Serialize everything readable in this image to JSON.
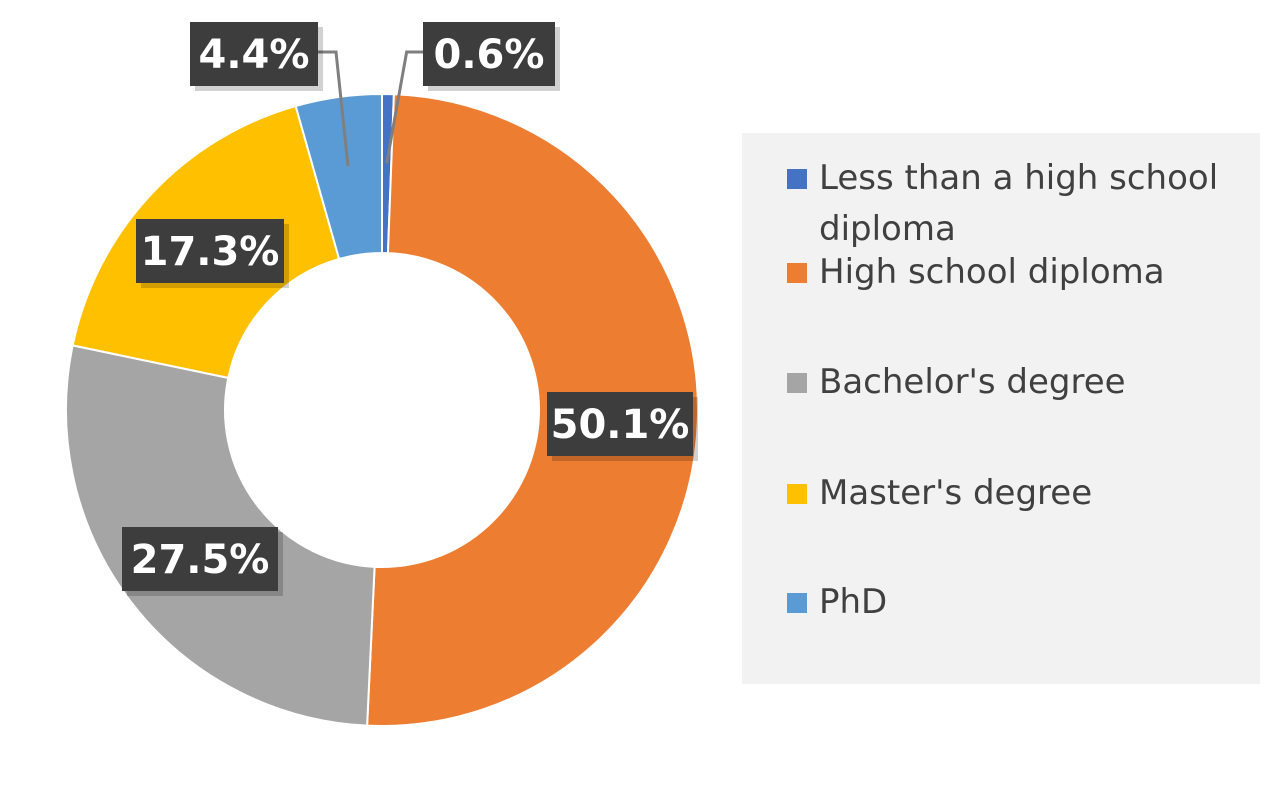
{
  "chart_data": {
    "type": "donut",
    "title": "",
    "series": [
      {
        "name": "",
        "values": [
          0.6,
          50.1,
          27.5,
          17.3,
          4.4
        ]
      }
    ],
    "categories": [
      "Less than a high school diploma",
      "High school diploma",
      "Bachelor's degree",
      "Master's degree",
      "PhD"
    ],
    "data_labels": [
      "0.6%",
      "50.1%",
      "27.5%",
      "17.3%",
      "4.4%"
    ],
    "colors": [
      "#4472c4",
      "#ed7d31",
      "#a5a5a5",
      "#ffc000",
      "#5b9bd5"
    ],
    "label_style": {
      "background": "#3d3d3d",
      "text_color": "#ffffff"
    },
    "legend_placement": "right",
    "start_angle": "12 o'clock, clockwise"
  }
}
